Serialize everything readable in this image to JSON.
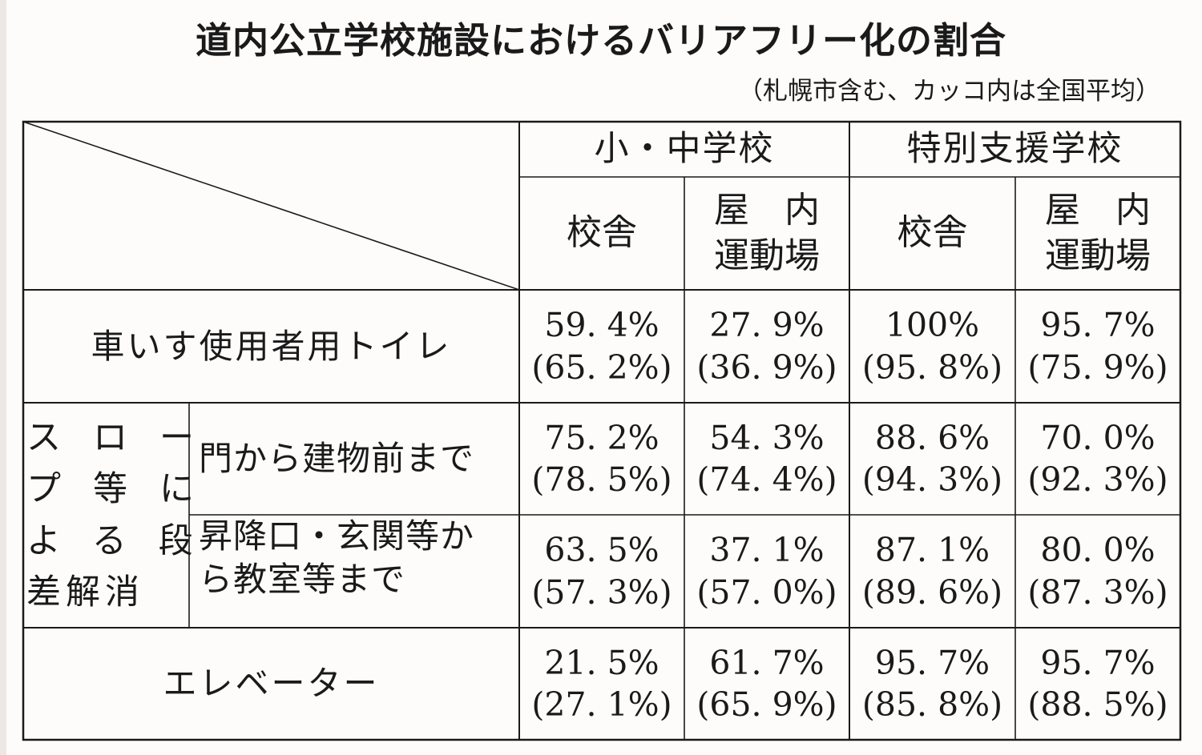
{
  "title": "道内公立学校施設におけるバリアフリー化の割合",
  "subtitle": "（札幌市含む、カッコ内は全国平均）",
  "headers": {
    "elementary": "小・中学校",
    "special": "特別支援学校",
    "school_bldg": "校舎",
    "gym_line1": "屋　内",
    "gym_line2": "運動場"
  },
  "rows": {
    "toilet": {
      "label": "車いす使用者用トイレ",
      "values": [
        "59. 4%",
        "27. 9%",
        "100%",
        "95. 7%"
      ],
      "national": [
        "(65. 2%)",
        "(36. 9%)",
        "(95. 8%)",
        "(75. 9%)"
      ]
    },
    "slope_group": {
      "line1": "スロー",
      "line2": "プ等に",
      "line3": "よる段",
      "line4": "差解消"
    },
    "gate": {
      "label": "門から建物前まで",
      "values": [
        "75. 2%",
        "54. 3%",
        "88. 6%",
        "70. 0%"
      ],
      "national": [
        "(78. 5%)",
        "(74. 4%)",
        "(94. 3%)",
        "(92. 3%)"
      ]
    },
    "entrance": {
      "label_line1": "昇降口・玄関等か",
      "label_line2": "ら教室等まで",
      "values": [
        "63. 5%",
        "37. 1%",
        "87. 1%",
        "80. 0%"
      ],
      "national": [
        "(57. 3%)",
        "(57. 0%)",
        "(89. 6%)",
        "(87. 3%)"
      ]
    },
    "elevator": {
      "label": "エレベーター",
      "values": [
        "21. 5%",
        "61. 7%",
        "95. 7%",
        "95. 7%"
      ],
      "national": [
        "(27. 1%)",
        "(65. 9%)",
        "(85. 8%)",
        "(88. 5%)"
      ]
    }
  }
}
